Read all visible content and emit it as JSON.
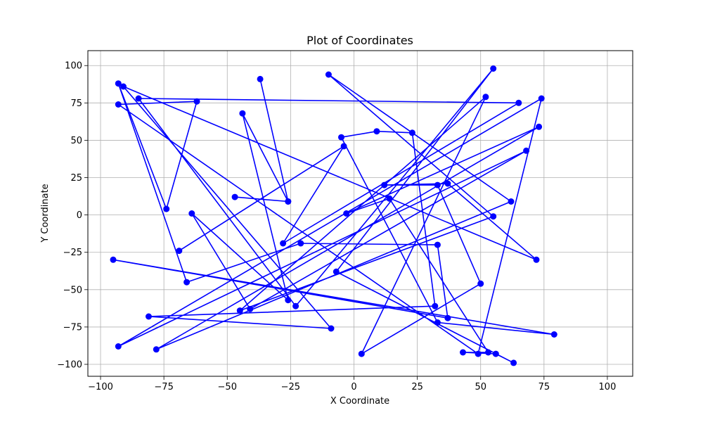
{
  "chart_data": {
    "type": "line",
    "title": "Plot of Coordinates",
    "xlabel": "X Coordinate",
    "ylabel": "Y Coordinate",
    "xlim": [
      -105,
      110
    ],
    "ylim": [
      -108,
      110
    ],
    "x_ticks": [
      -100,
      -75,
      -50,
      -25,
      0,
      25,
      50,
      75,
      100
    ],
    "y_ticks": [
      -100,
      -75,
      -50,
      -25,
      0,
      25,
      50,
      75,
      100
    ],
    "grid": true,
    "color": "#0000ff",
    "marker": "circle",
    "series": [
      {
        "points": [
          [
            -37,
            91
          ],
          [
            -26,
            9
          ],
          [
            -47,
            12
          ],
          [
            -26,
            9
          ],
          [
            -44,
            68
          ],
          [
            -26,
            -57
          ],
          [
            -64,
            1
          ],
          [
            -41,
            -63
          ],
          [
            68,
            43
          ],
          [
            -93,
            -88
          ],
          [
            74,
            78
          ],
          [
            49,
            -93
          ],
          [
            -93,
            74
          ],
          [
            -62,
            76
          ],
          [
            -74,
            4
          ],
          [
            -93,
            88
          ],
          [
            -66,
            -45
          ],
          [
            -21,
            -19
          ],
          [
            33,
            -20
          ],
          [
            37,
            -69
          ],
          [
            -95,
            -30
          ],
          [
            79,
            -80
          ],
          [
            33,
            -72
          ],
          [
            -5,
            52
          ],
          [
            9,
            56
          ],
          [
            23,
            55
          ],
          [
            32,
            -61
          ],
          [
            -81,
            -68
          ],
          [
            -9,
            -76
          ],
          [
            -91,
            86
          ],
          [
            72,
            -30
          ],
          [
            37,
            21
          ],
          [
            12,
            20
          ],
          [
            33,
            20
          ],
          [
            50,
            -46
          ],
          [
            3,
            -93
          ],
          [
            52,
            79
          ],
          [
            -45,
            -64
          ],
          [
            55,
            -1
          ],
          [
            -10,
            94
          ],
          [
            62,
            9
          ],
          [
            -78,
            -90
          ],
          [
            73,
            59
          ],
          [
            -3,
            1
          ],
          [
            14,
            11
          ],
          [
            53,
            -92
          ],
          [
            43,
            -92
          ],
          [
            56,
            -93
          ],
          [
            63,
            -99
          ],
          [
            -7,
            -38
          ],
          [
            55,
            98
          ],
          [
            -23,
            -61
          ],
          [
            -85,
            78
          ],
          [
            65,
            75
          ],
          [
            -28,
            -19
          ],
          [
            -4,
            46
          ],
          [
            -69,
            -24
          ]
        ]
      }
    ]
  }
}
